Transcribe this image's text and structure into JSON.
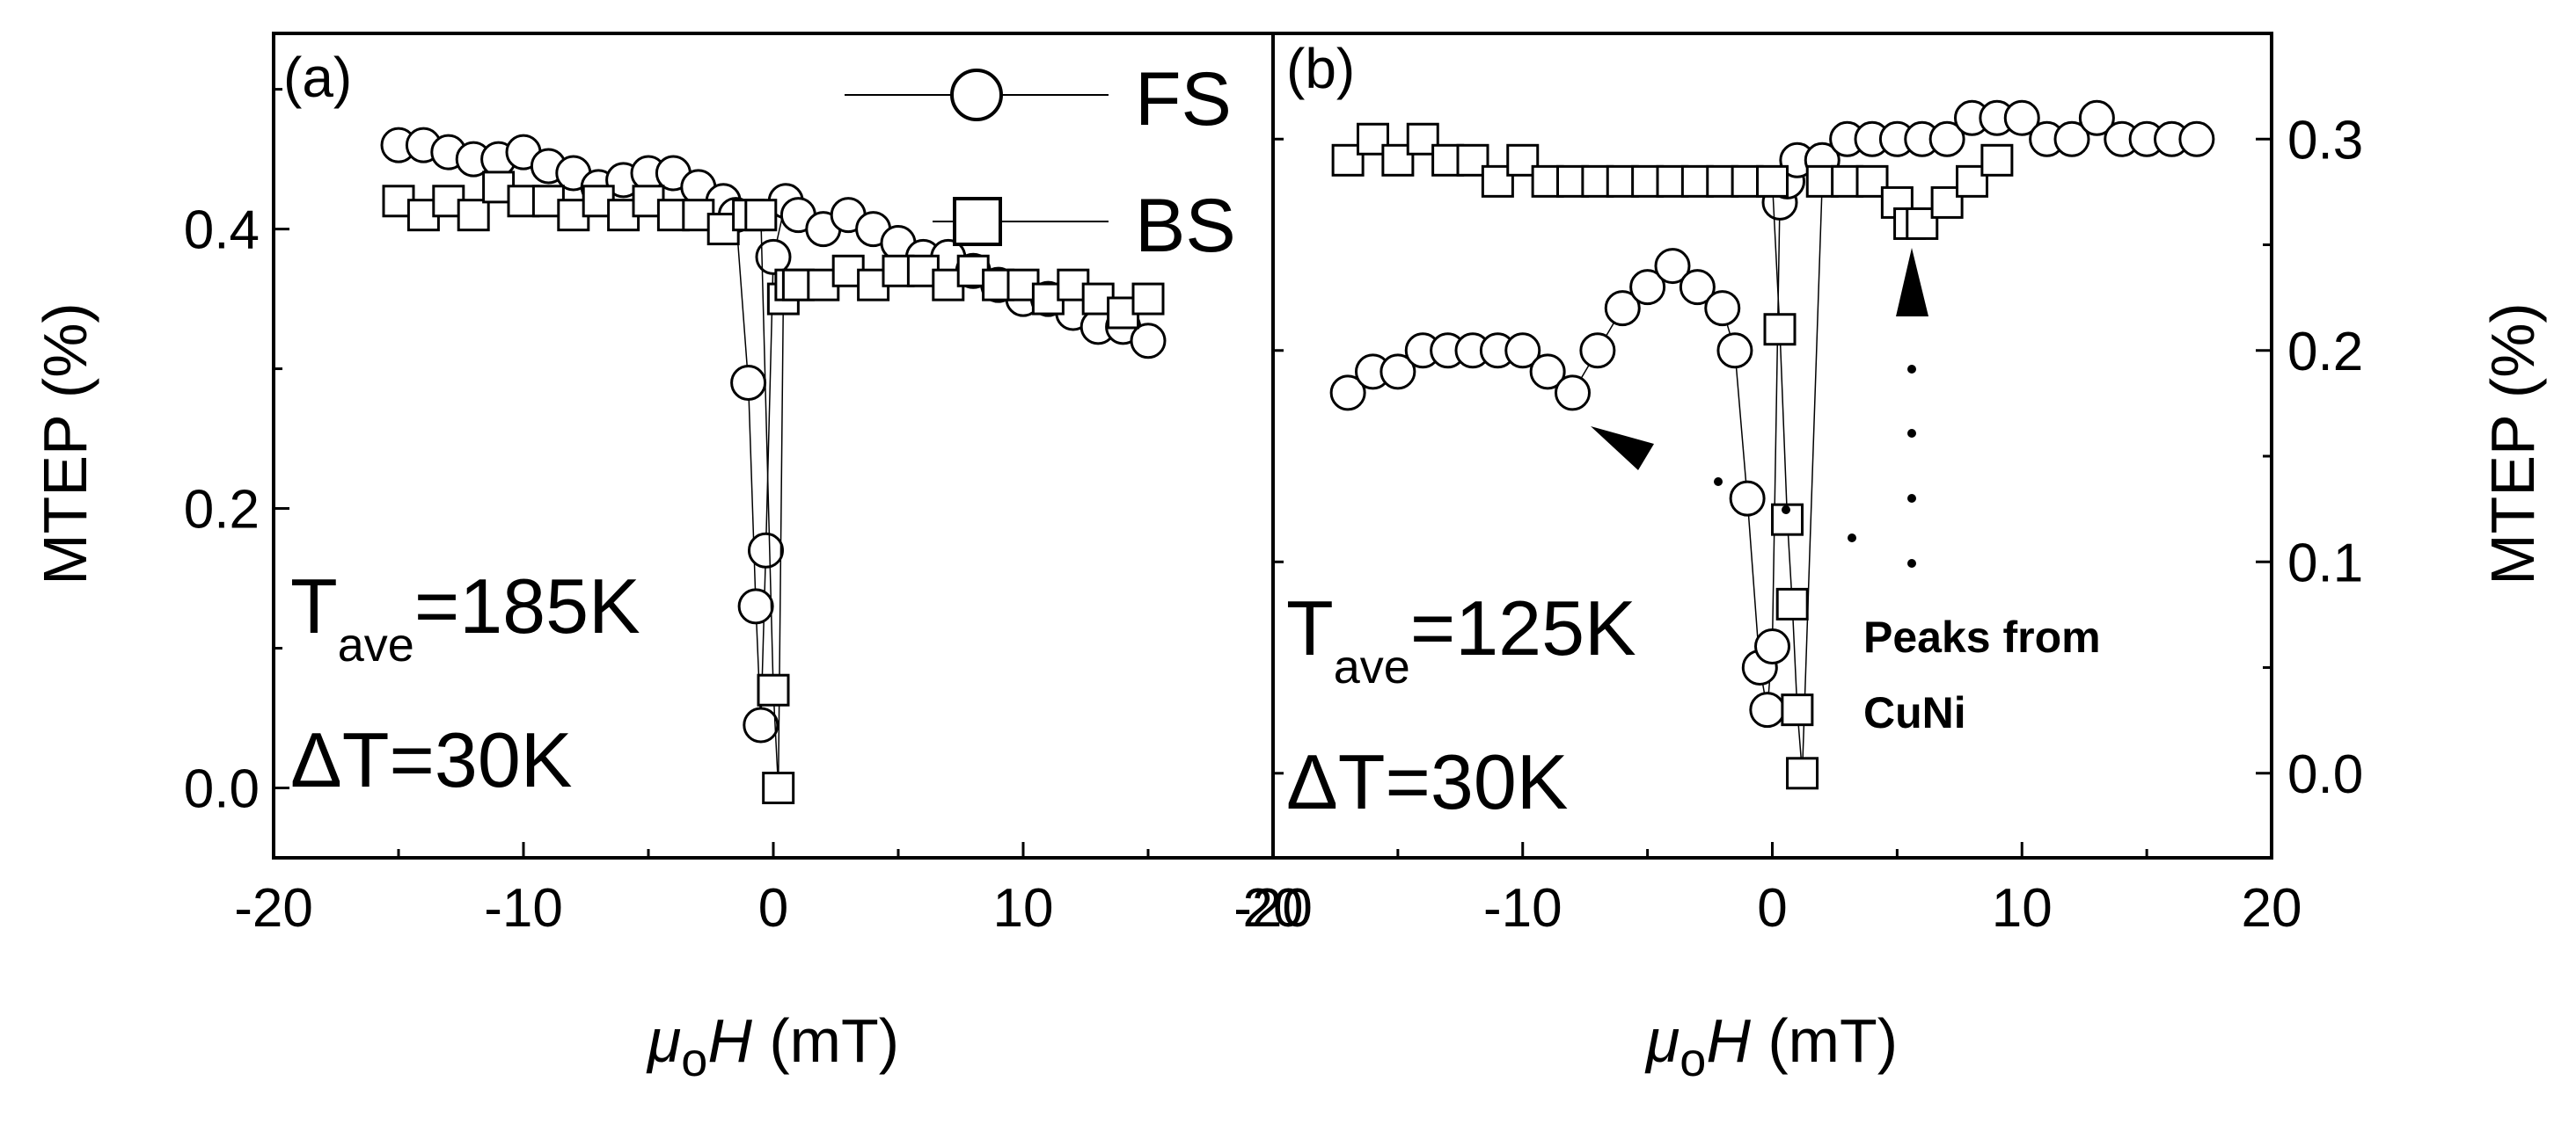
{
  "chart_data": [
    {
      "type": "scatter",
      "panel_label": "(a)",
      "xlabel": {
        "mu": "μ",
        "sub": "o",
        "H": "H",
        "unit": " (mT)"
      },
      "ylabel": "MTEP (%)",
      "xlim": [
        -20,
        20
      ],
      "ylim": [
        -0.05,
        0.54
      ],
      "xticks": [
        "-20",
        "-10",
        "0",
        "10",
        "20"
      ],
      "yticks": [
        "0.0",
        "0.2",
        "0.4"
      ],
      "y_axis_side": "left",
      "annotation": {
        "t_main": "T",
        "t_sub": "ave",
        "t_value": "=185K",
        "dt": "ΔT=30K"
      },
      "legend": {
        "placement": "top-right",
        "entries": [
          {
            "label": "FS",
            "marker": "circle"
          },
          {
            "label": "BS",
            "marker": "square"
          }
        ]
      },
      "series": [
        {
          "name": "FS",
          "marker": "circle",
          "x": [
            -15,
            -14,
            -13,
            -12,
            -11,
            -10,
            -9,
            -8,
            -7,
            -6,
            -5,
            -4,
            -3,
            -2,
            -1.5,
            -1,
            -0.7,
            -0.5,
            -0.3,
            0,
            0.5,
            1,
            2,
            3,
            4,
            5,
            6,
            7,
            8,
            9,
            10,
            11,
            12,
            13,
            14,
            15
          ],
          "y": [
            0.46,
            0.46,
            0.455,
            0.45,
            0.45,
            0.455,
            0.445,
            0.44,
            0.43,
            0.435,
            0.44,
            0.44,
            0.43,
            0.42,
            0.41,
            0.29,
            0.13,
            0.045,
            0.17,
            0.38,
            0.42,
            0.41,
            0.4,
            0.41,
            0.4,
            0.39,
            0.38,
            0.38,
            0.37,
            0.36,
            0.35,
            0.35,
            0.34,
            0.33,
            0.33,
            0.32
          ]
        },
        {
          "name": "BS",
          "marker": "square",
          "x": [
            -15,
            -14,
            -13,
            -12,
            -11,
            -10,
            -9,
            -8,
            -7,
            -6,
            -5,
            -4,
            -3,
            -2,
            -1,
            -0.5,
            0,
            0.2,
            0.4,
            0.7,
            1,
            2,
            3,
            4,
            5,
            6,
            7,
            8,
            9,
            10,
            11,
            12,
            13,
            14,
            15
          ],
          "y": [
            0.42,
            0.41,
            0.42,
            0.41,
            0.43,
            0.42,
            0.42,
            0.41,
            0.42,
            0.41,
            0.42,
            0.41,
            0.41,
            0.4,
            0.41,
            0.41,
            0.07,
            0.0,
            0.35,
            0.36,
            0.36,
            0.36,
            0.37,
            0.36,
            0.37,
            0.37,
            0.36,
            0.37,
            0.36,
            0.36,
            0.35,
            0.36,
            0.35,
            0.34,
            0.35
          ]
        }
      ]
    },
    {
      "type": "scatter",
      "panel_label": "(b)",
      "xlabel": {
        "mu": "μ",
        "sub": "o",
        "H": "H",
        "unit": " (mT)"
      },
      "ylabel": "MTEP (%)",
      "xlim": [
        -20,
        20
      ],
      "ylim": [
        -0.04,
        0.35
      ],
      "xticks": [
        "-20",
        "-10",
        "0",
        "10",
        "20"
      ],
      "yticks": [
        "0.0",
        "0.1",
        "0.2",
        "0.3"
      ],
      "y_axis_side": "right",
      "annotation": {
        "t_main": "T",
        "t_sub": "ave",
        "t_value": "=125K",
        "dt": "ΔT=30K",
        "peaks_line1": "Peaks from",
        "peaks_line2": "CuNi"
      },
      "series": [
        {
          "name": "FS",
          "marker": "circle",
          "x": [
            -17,
            -16,
            -15,
            -14,
            -13,
            -12,
            -11,
            -10,
            -9,
            -8,
            -7,
            -6,
            -5,
            -4,
            -3,
            -2,
            -1.5,
            -1,
            -0.5,
            -0.2,
            0,
            0.3,
            0.6,
            1,
            2,
            3,
            4,
            5,
            6,
            7,
            8,
            9,
            10,
            11,
            12,
            13,
            14,
            15,
            16,
            17
          ],
          "y": [
            0.18,
            0.19,
            0.19,
            0.2,
            0.2,
            0.2,
            0.2,
            0.2,
            0.19,
            0.18,
            0.2,
            0.22,
            0.23,
            0.24,
            0.23,
            0.22,
            0.2,
            0.13,
            0.05,
            0.03,
            0.06,
            0.27,
            0.28,
            0.29,
            0.29,
            0.3,
            0.3,
            0.3,
            0.3,
            0.3,
            0.31,
            0.31,
            0.31,
            0.3,
            0.3,
            0.31,
            0.3,
            0.3,
            0.3,
            0.3
          ]
        },
        {
          "name": "BS",
          "marker": "square",
          "x": [
            -17,
            -16,
            -15,
            -14,
            -13,
            -12,
            -11,
            -10,
            -9,
            -8,
            -7,
            -6,
            -5,
            -4,
            -3,
            -2,
            -1,
            0,
            0.3,
            0.6,
            0.8,
            1,
            1.2,
            2,
            3,
            4,
            5,
            5.5,
            6,
            7,
            8,
            9
          ],
          "y": [
            0.29,
            0.3,
            0.29,
            0.3,
            0.29,
            0.29,
            0.28,
            0.29,
            0.28,
            0.28,
            0.28,
            0.28,
            0.28,
            0.28,
            0.28,
            0.28,
            0.28,
            0.28,
            0.21,
            0.12,
            0.08,
            0.03,
            0.0,
            0.28,
            0.28,
            0.28,
            0.27,
            0.26,
            0.26,
            0.27,
            0.28,
            0.29
          ]
        }
      ]
    }
  ]
}
